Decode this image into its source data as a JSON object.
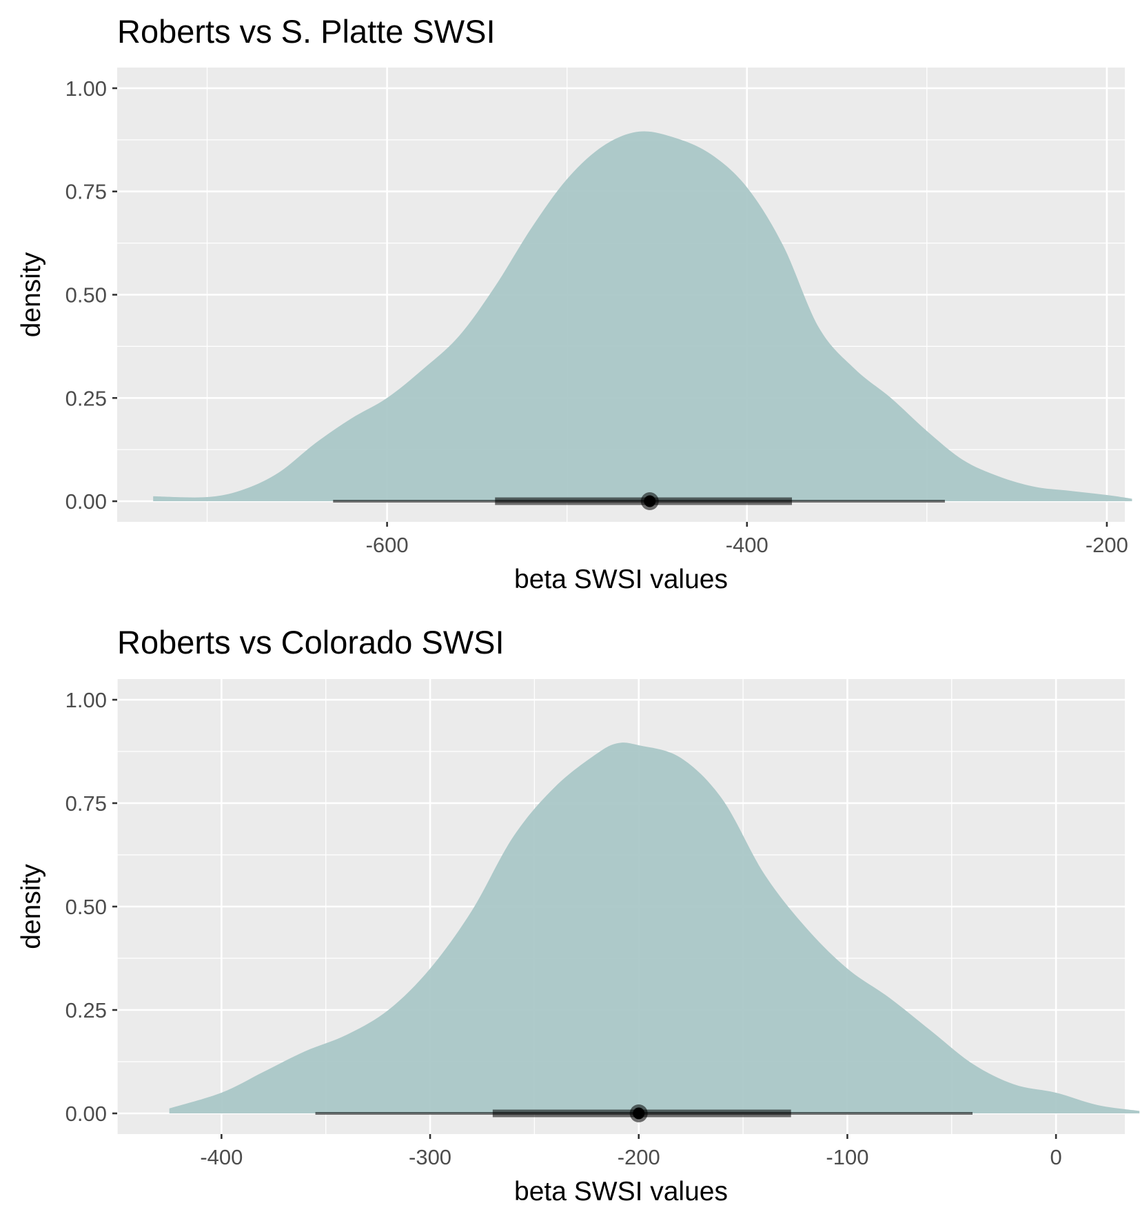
{
  "colors": {
    "panel_bg": "#ebebeb",
    "grid": "#ffffff",
    "density_fill": "#a7c5c6",
    "interval": "#000000",
    "tick_text": "#4d4d4d",
    "tick_mark": "#333333"
  },
  "chart_data": [
    {
      "type": "area",
      "title": "Roberts vs S. Platte SWSI",
      "xlabel": "beta SWSI values",
      "ylabel": "density",
      "xlim": [
        -750,
        -190
      ],
      "ylim": [
        -0.05,
        1.05
      ],
      "x_ticks": [
        -600,
        -400,
        -200
      ],
      "x_tick_labels": [
        "-600",
        "-400",
        "-200"
      ],
      "y_ticks": [
        0,
        0.25,
        0.5,
        0.75,
        1
      ],
      "y_tick_labels": [
        "0.00",
        "0.25",
        "0.50",
        "0.75",
        "1.00"
      ],
      "grid": true,
      "density": {
        "x": [
          -730,
          -700,
          -680,
          -660,
          -640,
          -620,
          -600,
          -580,
          -560,
          -540,
          -520,
          -500,
          -480,
          -460,
          -440,
          -420,
          -400,
          -380,
          -360,
          -340,
          -320,
          -300,
          -280,
          -260,
          -240,
          -220,
          -200,
          -186
        ],
        "y": [
          0.012,
          0.01,
          0.028,
          0.07,
          0.14,
          0.2,
          0.25,
          0.32,
          0.4,
          0.52,
          0.66,
          0.78,
          0.86,
          0.895,
          0.88,
          0.84,
          0.76,
          0.62,
          0.42,
          0.32,
          0.25,
          0.17,
          0.1,
          0.06,
          0.035,
          0.025,
          0.015,
          0.006
        ]
      },
      "point": -454,
      "interval_thick": [
        -540,
        -375
      ],
      "interval_thin": [
        -630,
        -290
      ]
    },
    {
      "type": "area",
      "title": "Roberts vs Colorado SWSI",
      "xlabel": "beta SWSI values",
      "ylabel": "density",
      "xlim": [
        -450,
        33
      ],
      "ylim": [
        -0.05,
        1.05
      ],
      "x_ticks": [
        -400,
        -300,
        -200,
        -100,
        0
      ],
      "x_tick_labels": [
        "-400",
        "-300",
        "-200",
        "-100",
        "0"
      ],
      "y_ticks": [
        0,
        0.25,
        0.5,
        0.75,
        1
      ],
      "y_tick_labels": [
        "0.00",
        "0.25",
        "0.50",
        "0.75",
        "1.00"
      ],
      "grid": true,
      "density": {
        "x": [
          -425,
          -400,
          -380,
          -360,
          -340,
          -320,
          -300,
          -280,
          -260,
          -240,
          -220,
          -210,
          -200,
          -180,
          -160,
          -140,
          -120,
          -100,
          -80,
          -60,
          -40,
          -20,
          0,
          20,
          40
        ],
        "y": [
          0.012,
          0.05,
          0.1,
          0.15,
          0.19,
          0.25,
          0.35,
          0.49,
          0.67,
          0.79,
          0.87,
          0.895,
          0.89,
          0.86,
          0.76,
          0.58,
          0.45,
          0.35,
          0.28,
          0.2,
          0.12,
          0.07,
          0.05,
          0.02,
          0.006
        ]
      },
      "point": -200,
      "interval_thick": [
        -270,
        -127
      ],
      "interval_thin": [
        -355,
        -40
      ]
    }
  ]
}
